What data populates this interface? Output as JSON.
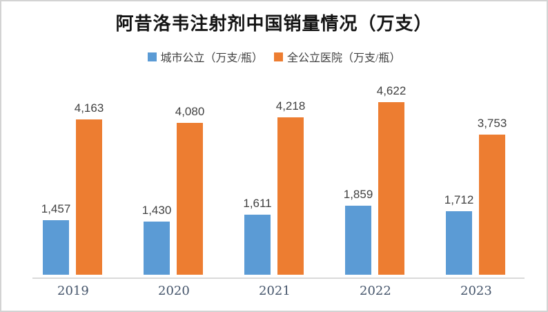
{
  "chart_data": {
    "type": "bar",
    "title": "阿昔洛韦注射剂中国销量情况（万支）",
    "categories": [
      "2019",
      "2020",
      "2021",
      "2022",
      "2023"
    ],
    "series": [
      {
        "name": "城市公立（万支/瓶）",
        "color": "#5B9BD5",
        "values": [
          1457,
          1430,
          1611,
          1859,
          1712
        ],
        "labels": [
          "1,457",
          "1,430",
          "1,611",
          "1,859",
          "1,712"
        ]
      },
      {
        "name": "全公立医院（万支/瓶）",
        "color": "#ED7D31",
        "values": [
          4163,
          4080,
          4218,
          4622,
          3753
        ],
        "labels": [
          "4,163",
          "4,080",
          "4,218",
          "4,622",
          "3,753"
        ]
      }
    ],
    "ylim": [
      0,
      5000
    ],
    "grid": false,
    "value_labels": true,
    "legend_position": "top",
    "axis_line_color": "#D9D9D9",
    "category_label_color": "#44546A",
    "value_label_color": "#404040",
    "frame_border_color": "#D3D3D3"
  }
}
